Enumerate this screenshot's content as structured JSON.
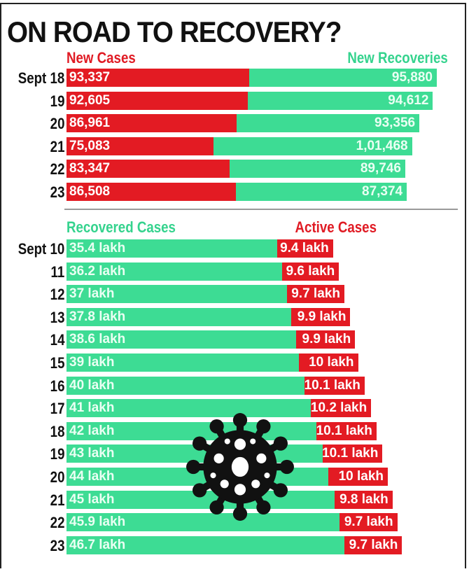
{
  "chart_data": [
    {
      "type": "bar",
      "title": "ON ROAD TO RECOVERY?",
      "categories": [
        "Sept 18",
        "19",
        "20",
        "21",
        "22",
        "23"
      ],
      "series": [
        {
          "name": "New Cases",
          "values": [
            93337,
            92605,
            86961,
            75083,
            83347,
            86508
          ],
          "labels": [
            "93,337",
            "92,605",
            "86,961",
            "75,083",
            "83,347",
            "86,508"
          ],
          "color": "#e31b23"
        },
        {
          "name": "New Recoveries",
          "values": [
            95880,
            94612,
            93356,
            101468,
            89746,
            87374
          ],
          "labels": [
            "95,880",
            "94,612",
            "93,356",
            "1,01,468",
            "89,746",
            "87,374"
          ],
          "color": "#3ddc94"
        }
      ],
      "grid": false
    },
    {
      "type": "bar",
      "categories": [
        "Sept 10",
        "11",
        "12",
        "13",
        "14",
        "15",
        "16",
        "17",
        "18",
        "19",
        "20",
        "21",
        "22",
        "23"
      ],
      "series": [
        {
          "name": "Recovered Cases",
          "values": [
            35.4,
            36.2,
            37,
            37.8,
            38.6,
            39,
            40,
            41,
            42,
            43,
            44,
            45,
            45.9,
            46.7
          ],
          "labels": [
            "35.4 lakh",
            "36.2 lakh",
            "37 lakh",
            "37.8 lakh",
            "38.6 lakh",
            "39 lakh",
            "40 lakh",
            "41 lakh",
            "42 lakh",
            "43 lakh",
            "44 lakh",
            "45 lakh",
            "45.9 lakh",
            "46.7 lakh"
          ],
          "color": "#3ddc94"
        },
        {
          "name": "Active Cases",
          "values": [
            9.4,
            9.6,
            9.7,
            9.9,
            9.9,
            10,
            10.1,
            10.2,
            10.1,
            10.1,
            10,
            9.8,
            9.7,
            9.7
          ],
          "labels": [
            "9.4 lakh",
            "9.6 lakh",
            "9.7 lakh",
            "9.9 lakh",
            "9.9 lakh",
            "10 lakh",
            "10.1 lakh",
            "10.2 lakh",
            "10.1 lakh",
            "10.1 lakh",
            "10 lakh",
            "9.8 lakh",
            "9.7 lakh",
            "9.7 lakh"
          ],
          "color": "#e31b23"
        }
      ],
      "grid": false
    }
  ]
}
